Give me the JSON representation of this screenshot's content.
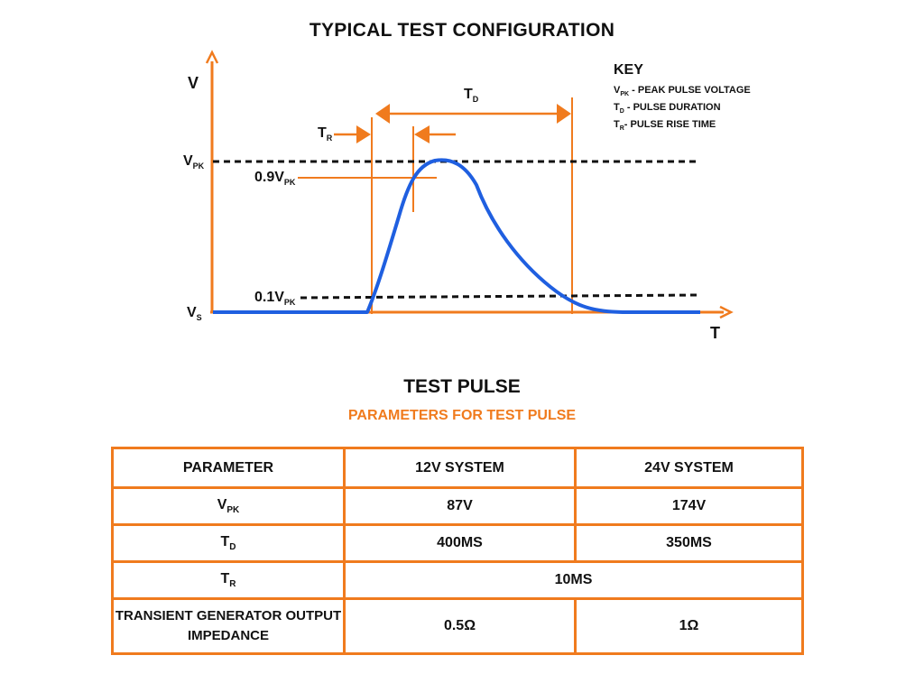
{
  "diagram": {
    "title": "TYPICAL TEST CONFIGURATION",
    "axis_v": "V",
    "axis_t": "T",
    "level_vpk": {
      "main": "V",
      "sub": "PK"
    },
    "level_09": {
      "main": "0.9V",
      "sub": "PK"
    },
    "level_01": {
      "main": "0.1V",
      "sub": "PK"
    },
    "level_vs": {
      "main": "V",
      "sub": "S"
    },
    "label_tr": {
      "main": "T",
      "sub": "R"
    },
    "label_td": {
      "main": "T",
      "sub": "D"
    },
    "key": {
      "heading": "KEY",
      "items": [
        {
          "sym": "V",
          "sub": "PK",
          "text": " - PEAK PULSE VOLTAGE"
        },
        {
          "sym": "T",
          "sub": "D",
          "text": " - PULSE DURATION"
        },
        {
          "sym": "T",
          "sub": "R",
          "text": "- PULSE RISE TIME"
        }
      ]
    },
    "colors": {
      "axis": "#f07b1e",
      "pulse": "#1f5fe0",
      "dashed": "#111111"
    }
  },
  "table": {
    "title": "TEST PULSE",
    "subtitle": "PARAMETERS FOR TEST PULSE",
    "headers": [
      "PARAMETER",
      "12V SYSTEM",
      "24V SYSTEM"
    ],
    "rows": [
      {
        "param_main": "V",
        "param_sub": "PK",
        "v12": "87V",
        "v24": "174V"
      },
      {
        "param_main": "T",
        "param_sub": "D",
        "v12": "400MS",
        "v24": "350MS"
      },
      {
        "param_main": "T",
        "param_sub": "R",
        "merged": "10MS"
      },
      {
        "param_line1": "TRANSIENT GENERATOR OUTPUT",
        "param_line2": "IMPEDANCE",
        "v12": "0.5Ω",
        "v24": "1Ω"
      }
    ]
  }
}
